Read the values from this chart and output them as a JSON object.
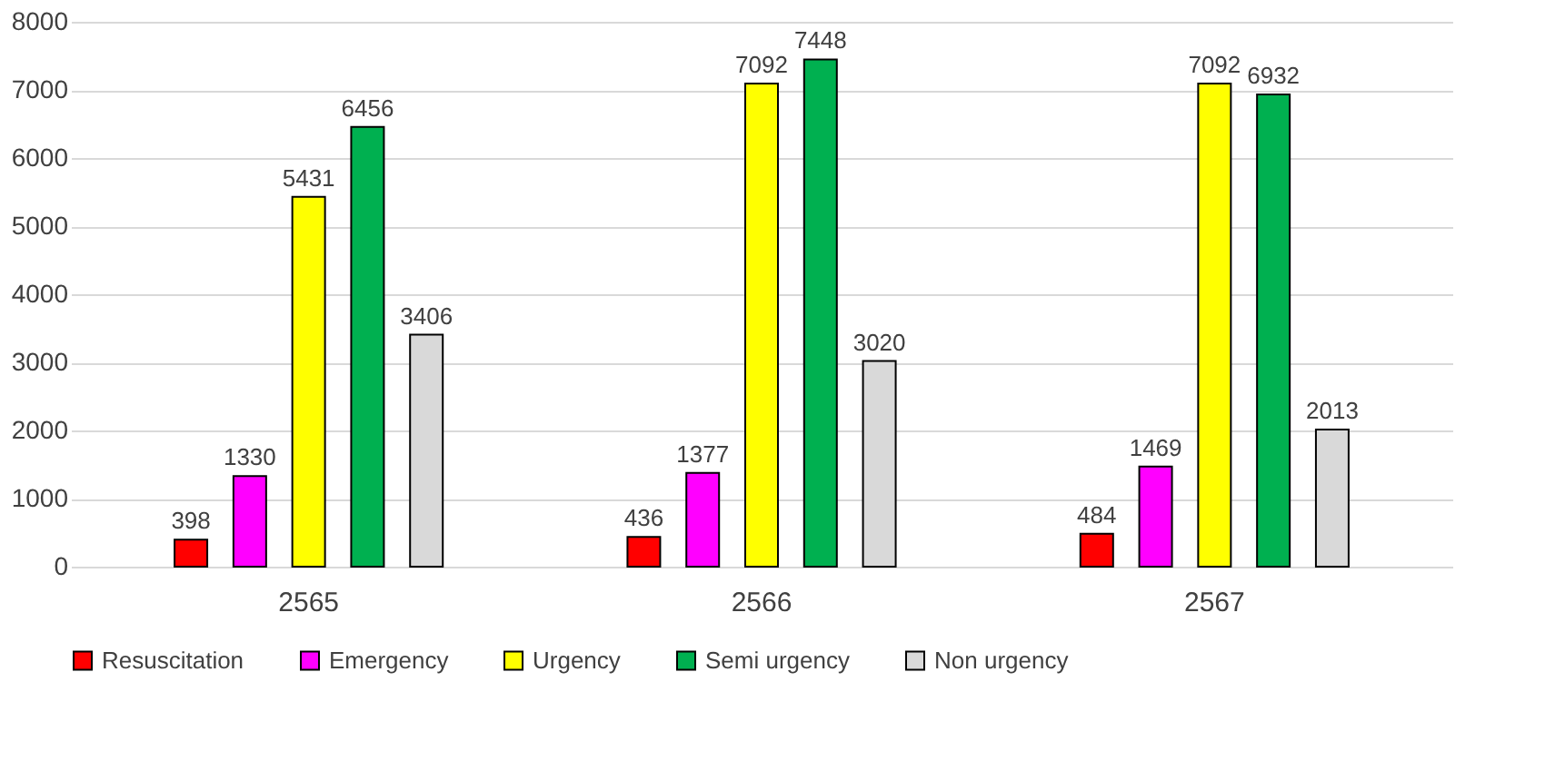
{
  "chart_data": {
    "type": "bar",
    "categories": [
      "2565",
      "2566",
      "2567"
    ],
    "series": [
      {
        "name": "Resuscitation",
        "color": "#ff0000",
        "values": [
          398,
          436,
          484
        ]
      },
      {
        "name": "Emergency",
        "color": "#ff00ff",
        "values": [
          1330,
          1377,
          1469
        ]
      },
      {
        "name": "Urgency",
        "color": "#ffff00",
        "values": [
          5431,
          7092,
          7092
        ]
      },
      {
        "name": "Semi urgency",
        "color": "#00b050",
        "values": [
          6456,
          7448,
          6932
        ]
      },
      {
        "name": "Non urgency",
        "color": "#d9d9d9",
        "values": [
          3406,
          3020,
          2013
        ]
      }
    ],
    "ylim": [
      0,
      8000
    ],
    "yticks": [
      0,
      1000,
      2000,
      3000,
      4000,
      5000,
      6000,
      7000,
      8000
    ],
    "grid": "y",
    "legend": "bottom",
    "data_labels": true
  }
}
